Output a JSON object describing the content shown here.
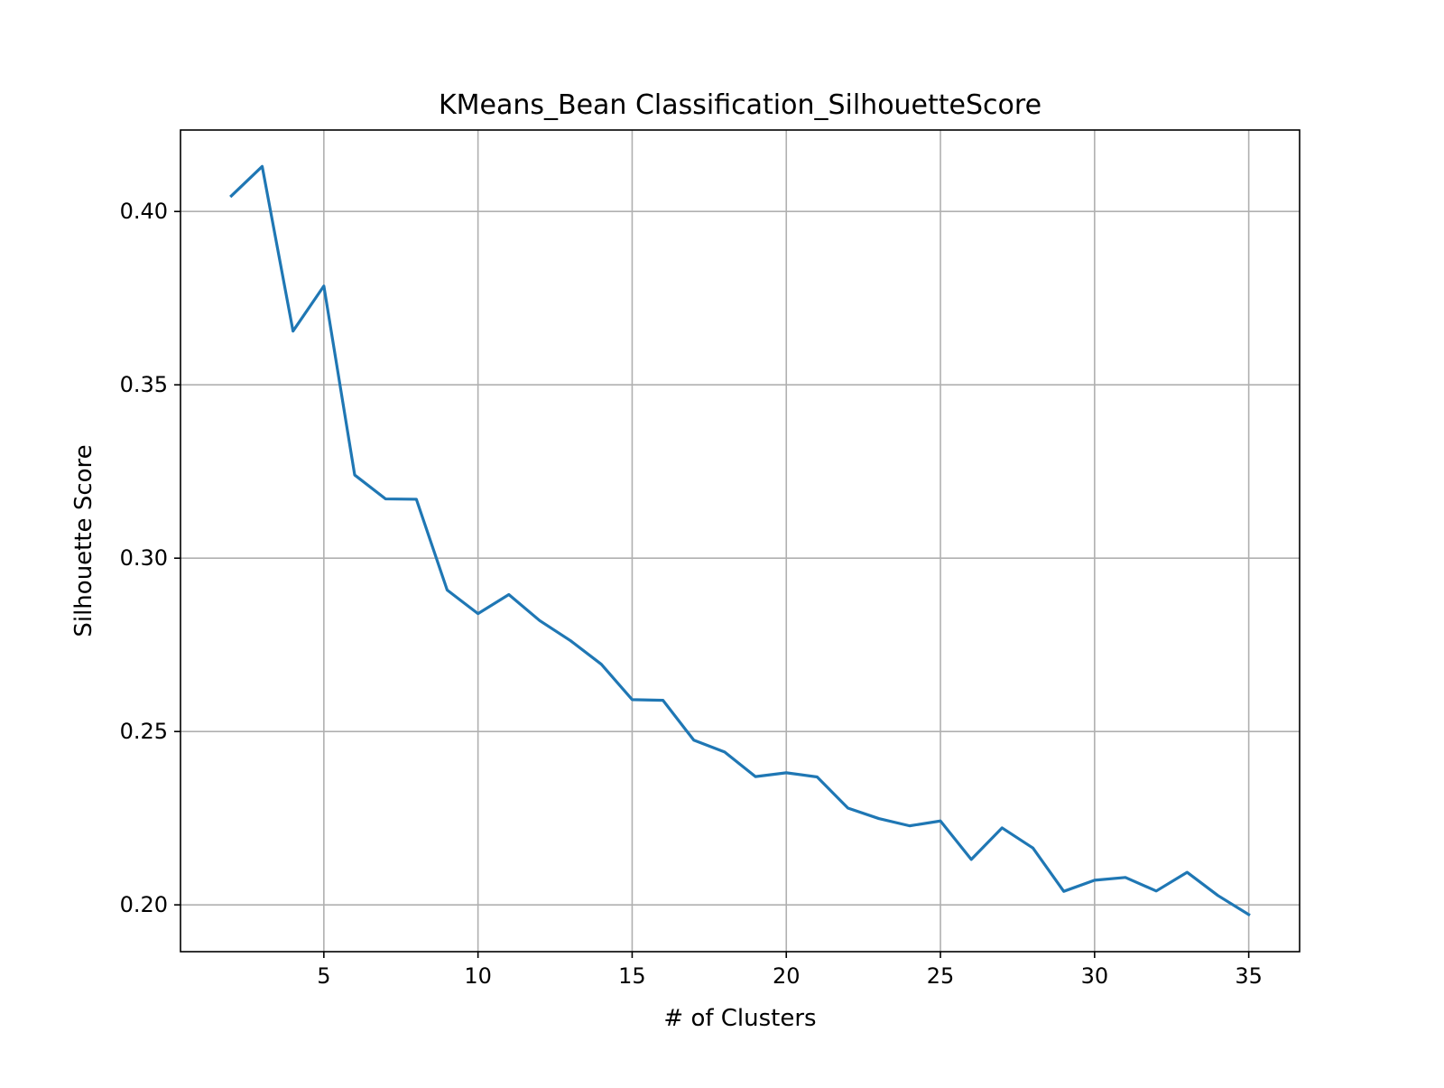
{
  "chart_data": {
    "type": "line",
    "title": "KMeans_Bean Classification_SilhouetteScore",
    "xlabel": "# of Clusters",
    "ylabel": "Silhouette Score",
    "xlim": [
      0.35,
      36.65
    ],
    "ylim": [
      0.1865,
      0.4235
    ],
    "xticks": [
      5,
      10,
      15,
      20,
      25,
      30,
      35
    ],
    "xtick_labels": [
      "5",
      "10",
      "15",
      "20",
      "25",
      "30",
      "35"
    ],
    "yticks": [
      0.2,
      0.25,
      0.3,
      0.35,
      0.4
    ],
    "ytick_labels": [
      "0.20",
      "0.25",
      "0.30",
      "0.35",
      "0.40"
    ],
    "grid": true,
    "legend": "none",
    "series": [
      {
        "color": "#1f77b4",
        "x": [
          2,
          3,
          4,
          5,
          6,
          7,
          8,
          9,
          10,
          11,
          12,
          13,
          14,
          15,
          16,
          17,
          18,
          19,
          20,
          21,
          22,
          23,
          24,
          25,
          26,
          27,
          28,
          29,
          30,
          31,
          32,
          33,
          34,
          35
        ],
        "y": [
          0.4045,
          0.413,
          0.3655,
          0.3785,
          0.324,
          0.3171,
          0.317,
          0.2908,
          0.284,
          0.2895,
          0.282,
          0.2762,
          0.2694,
          0.2592,
          0.259,
          0.2475,
          0.2441,
          0.237,
          0.2381,
          0.2369,
          0.2279,
          0.2249,
          0.2228,
          0.2242,
          0.2131,
          0.2222,
          0.2164,
          0.2039,
          0.2071,
          0.2079,
          0.204,
          0.2094,
          0.2027,
          0.1972
        ]
      }
    ]
  }
}
